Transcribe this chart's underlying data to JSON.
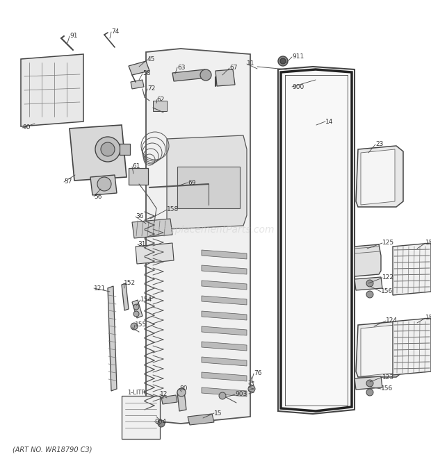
{
  "art_no": "(ART NO. WR18790 C3)",
  "watermark": "eReplacementParts.com",
  "bg_color": "#ffffff",
  "figsize": [
    6.2,
    6.61
  ],
  "dpi": 100,
  "line_color": "#555555",
  "dark_color": "#333333",
  "label_color": "#333333"
}
